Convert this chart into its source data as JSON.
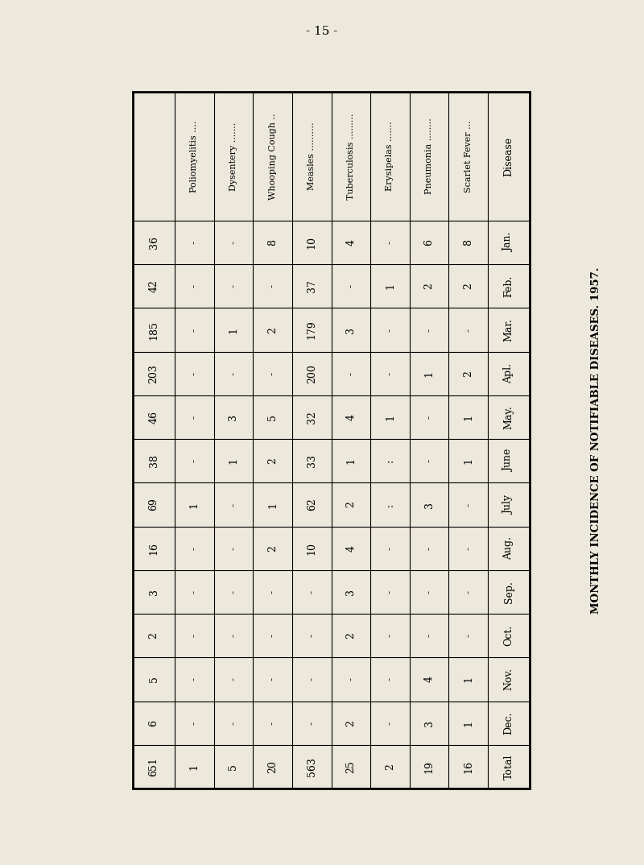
{
  "title": "MONTHLY INCIDENCE OF NOTIFIABLE DISEASES. 1957.",
  "page_number": "- 15 -",
  "background_color": "#ede8dc",
  "col_headers_left_to_right": [
    "Poliomyelitis ....",
    "Dysentery .......",
    "Whooping Cough ..",
    "Measles ..........",
    "Tuberculosis .........",
    "Erysipelas .......",
    "Pneumonia ........",
    "Scarlet Fever ...",
    "Disease"
  ],
  "row_headers": [
    "Jan.",
    "Feb.",
    "Mar.",
    "Apl.",
    "May.",
    "June",
    "July",
    "Aug.",
    "Sep.",
    "Oct.",
    "Nov.",
    "Dec.",
    "Total"
  ],
  "table_data_left_to_right": [
    [
      "-",
      "-",
      8,
      10,
      4,
      "-",
      6,
      8,
      36
    ],
    [
      "-",
      "-",
      "-",
      37,
      "-",
      1,
      2,
      2,
      42
    ],
    [
      "-",
      1,
      2,
      179,
      3,
      "-",
      "-",
      "-",
      185
    ],
    [
      "-",
      "-",
      "-",
      200,
      "-",
      "-",
      1,
      2,
      203
    ],
    [
      "-",
      3,
      5,
      32,
      4,
      1,
      "-",
      1,
      46
    ],
    [
      "-",
      1,
      2,
      33,
      1,
      ":",
      "-",
      1,
      38
    ],
    [
      1,
      "-",
      1,
      62,
      2,
      ":",
      3,
      "-",
      69
    ],
    [
      "-",
      "-",
      2,
      10,
      4,
      "-",
      "-",
      "-",
      16
    ],
    [
      "-",
      "-",
      "-",
      "-",
      3,
      "-",
      "-",
      "-",
      3
    ],
    [
      "-",
      "-",
      "-",
      "-",
      2,
      "-",
      "-",
      "-",
      2
    ],
    [
      "-",
      "-",
      "-",
      "-",
      "-",
      "-",
      4,
      1,
      5
    ],
    [
      "-",
      "-",
      "-",
      "-",
      2,
      "-",
      3,
      1,
      6
    ],
    [
      1,
      5,
      20,
      563,
      25,
      2,
      19,
      16,
      651
    ]
  ],
  "font_size_header": 8,
  "font_size_data": 9,
  "font_size_title": 9.5,
  "font_size_page": 11
}
